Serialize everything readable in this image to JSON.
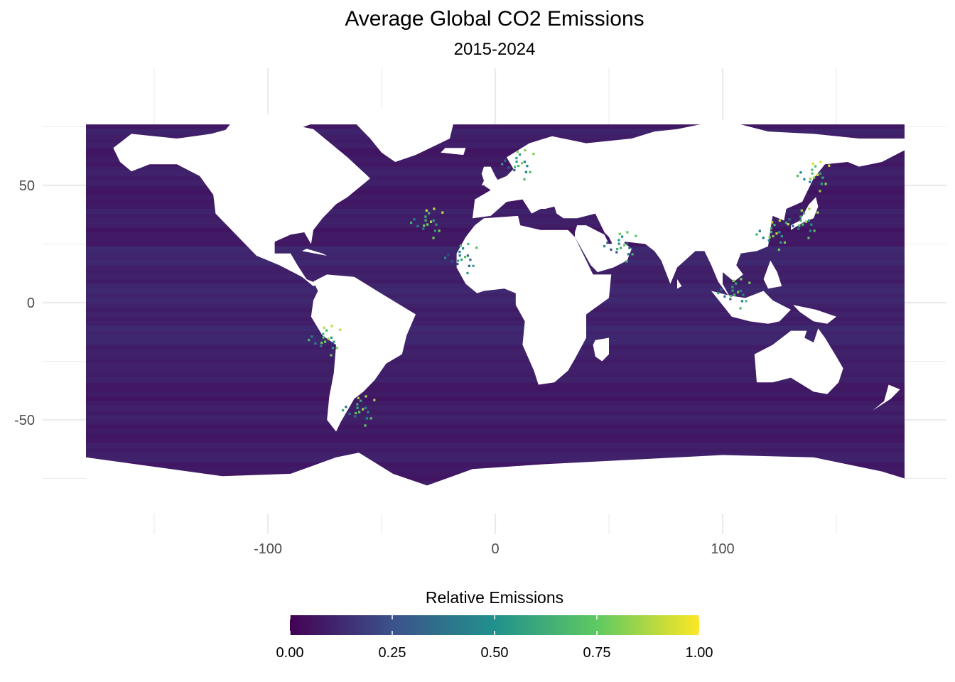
{
  "chart_data": {
    "type": "heatmap",
    "title": "Average Global CO2 Emissions",
    "subtitle": "2015-2024",
    "xlabel": "",
    "ylabel": "",
    "xlim": [
      -180,
      180
    ],
    "ylim": [
      -90,
      90
    ],
    "x_ticks": [
      -100,
      0,
      100
    ],
    "y_ticks": [
      50,
      0,
      -50
    ],
    "grid": true,
    "legend_position": "bottom",
    "colorbar": {
      "title": "Relative Emissions",
      "min": 0,
      "max": 1,
      "ticks": [
        "0.00",
        "0.25",
        "0.50",
        "0.75",
        "1.00"
      ],
      "palette": [
        "#440154",
        "#3b528b",
        "#21918c",
        "#5ec962",
        "#fde725"
      ]
    },
    "background_color": "#ffffff",
    "ocean_base_value": 0.05,
    "hotspots": [
      {
        "lon": 135,
        "lat": 35,
        "value": 0.85
      },
      {
        "lon": 122,
        "lat": 30,
        "value": 0.9
      },
      {
        "lon": 140,
        "lat": 55,
        "value": 0.95
      },
      {
        "lon": 105,
        "lat": 5,
        "value": 0.8
      },
      {
        "lon": 55,
        "lat": 25,
        "value": 0.75
      },
      {
        "lon": -75,
        "lat": -15,
        "value": 0.9
      },
      {
        "lon": -60,
        "lat": -45,
        "value": 0.85
      },
      {
        "lon": 10,
        "lat": 60,
        "value": 0.8
      },
      {
        "lon": -15,
        "lat": 20,
        "value": 0.7
      },
      {
        "lon": -30,
        "lat": 35,
        "value": 0.9
      }
    ]
  }
}
